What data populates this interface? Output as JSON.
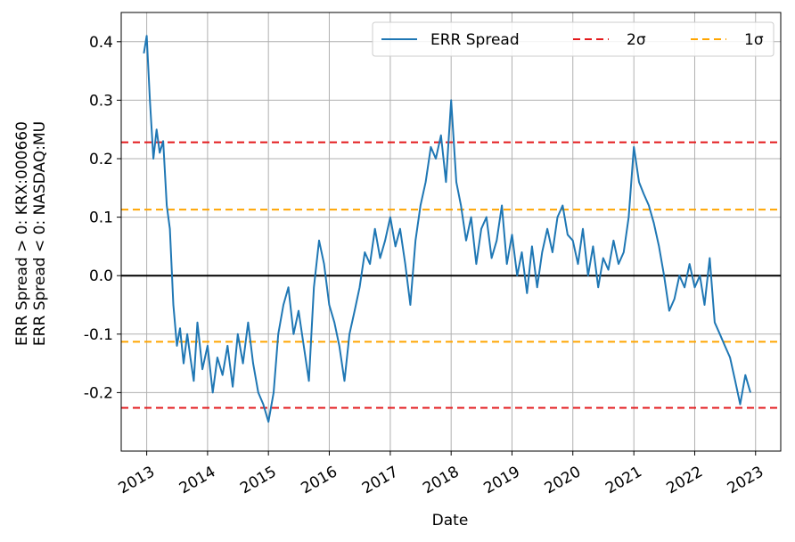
{
  "chart_data": {
    "type": "line",
    "title": "",
    "xlabel": "Date",
    "ylabel": [
      "ERR Spread > 0: KRX:000660",
      "ERR Spread < 0: NASDAQ:MU"
    ],
    "xlim": [
      "2012-08-01",
      "2023-06-01"
    ],
    "ylim": [
      -0.3,
      0.45
    ],
    "grid": true,
    "legend_position": "top-right",
    "x_ticks": [
      "2013",
      "2014",
      "2015",
      "2016",
      "2017",
      "2018",
      "2019",
      "2020",
      "2021",
      "2022",
      "2023"
    ],
    "y_ticks": [
      "0.4",
      "0.3",
      "0.2",
      "0.1",
      "0.0",
      "-0.1",
      "-0.2"
    ],
    "y_tick_values": [
      0.4,
      0.3,
      0.2,
      0.1,
      0.0,
      -0.1,
      -0.2
    ],
    "series": [
      {
        "name": "ERR Spread",
        "color": "#1f77b4",
        "style": "solid",
        "x": [
          "2012-12-15",
          "2013-01-01",
          "2013-01-20",
          "2013-02-10",
          "2013-03-01",
          "2013-03-20",
          "2013-04-10",
          "2013-05-01",
          "2013-05-20",
          "2013-06-10",
          "2013-07-01",
          "2013-07-20",
          "2013-08-10",
          "2013-09-01",
          "2013-09-20",
          "2013-10-10",
          "2013-11-01",
          "2013-12-01",
          "2014-01-01",
          "2014-02-01",
          "2014-03-01",
          "2014-04-01",
          "2014-05-01",
          "2014-06-01",
          "2014-07-01",
          "2014-08-01",
          "2014-09-01",
          "2014-10-01",
          "2014-11-01",
          "2014-12-01",
          "2015-01-01",
          "2015-02-01",
          "2015-03-01",
          "2015-04-01",
          "2015-05-01",
          "2015-06-01",
          "2015-07-01",
          "2015-08-01",
          "2015-09-01",
          "2015-10-01",
          "2015-11-01",
          "2015-12-01",
          "2016-01-01",
          "2016-02-01",
          "2016-03-01",
          "2016-04-01",
          "2016-05-01",
          "2016-06-01",
          "2016-07-01",
          "2016-08-01",
          "2016-09-01",
          "2016-10-01",
          "2016-11-01",
          "2016-12-01",
          "2017-01-01",
          "2017-02-01",
          "2017-03-01",
          "2017-04-01",
          "2017-05-01",
          "2017-06-01",
          "2017-07-01",
          "2017-08-01",
          "2017-09-01",
          "2017-10-01",
          "2017-11-01",
          "2017-12-01",
          "2018-01-01",
          "2018-02-01",
          "2018-03-01",
          "2018-04-01",
          "2018-05-01",
          "2018-06-01",
          "2018-07-01",
          "2018-08-01",
          "2018-09-01",
          "2018-10-01",
          "2018-11-01",
          "2018-12-01",
          "2019-01-01",
          "2019-02-01",
          "2019-03-01",
          "2019-04-01",
          "2019-05-01",
          "2019-06-01",
          "2019-07-01",
          "2019-08-01",
          "2019-09-01",
          "2019-10-01",
          "2019-11-01",
          "2019-12-01",
          "2020-01-01",
          "2020-02-01",
          "2020-03-01",
          "2020-04-01",
          "2020-05-01",
          "2020-06-01",
          "2020-07-01",
          "2020-08-01",
          "2020-09-01",
          "2020-10-01",
          "2020-11-01",
          "2020-12-01",
          "2021-01-01",
          "2021-02-01",
          "2021-03-01",
          "2021-04-01",
          "2021-05-01",
          "2021-06-01",
          "2021-07-01",
          "2021-08-01",
          "2021-09-01",
          "2021-10-01",
          "2021-11-01",
          "2021-12-01",
          "2022-01-01",
          "2022-02-01",
          "2022-03-01",
          "2022-04-01",
          "2022-05-01",
          "2022-06-01",
          "2022-07-01",
          "2022-08-01",
          "2022-09-01",
          "2022-10-01",
          "2022-11-01",
          "2022-12-01"
        ],
        "values": [
          0.38,
          0.41,
          0.3,
          0.2,
          0.25,
          0.21,
          0.23,
          0.12,
          0.08,
          -0.05,
          -0.12,
          -0.09,
          -0.15,
          -0.1,
          -0.14,
          -0.18,
          -0.08,
          -0.16,
          -0.12,
          -0.2,
          -0.14,
          -0.17,
          -0.12,
          -0.19,
          -0.1,
          -0.15,
          -0.08,
          -0.15,
          -0.2,
          -0.22,
          -0.25,
          -0.2,
          -0.1,
          -0.05,
          -0.02,
          -0.1,
          -0.06,
          -0.12,
          -0.18,
          -0.02,
          0.06,
          0.02,
          -0.05,
          -0.08,
          -0.12,
          -0.18,
          -0.1,
          -0.06,
          -0.02,
          0.04,
          0.02,
          0.08,
          0.03,
          0.06,
          0.1,
          0.05,
          0.08,
          0.02,
          -0.05,
          0.06,
          0.12,
          0.16,
          0.22,
          0.2,
          0.24,
          0.16,
          0.3,
          0.16,
          0.12,
          0.06,
          0.1,
          0.02,
          0.08,
          0.1,
          0.03,
          0.06,
          0.12,
          0.02,
          0.07,
          0.0,
          0.04,
          -0.03,
          0.05,
          -0.02,
          0.04,
          0.08,
          0.04,
          0.1,
          0.12,
          0.07,
          0.06,
          0.02,
          0.08,
          0.0,
          0.05,
          -0.02,
          0.03,
          0.01,
          0.06,
          0.02,
          0.04,
          0.1,
          0.22,
          0.16,
          0.14,
          0.12,
          0.09,
          0.05,
          0.0,
          -0.06,
          -0.04,
          0.0,
          -0.02,
          0.02,
          -0.02,
          0.0,
          -0.05,
          0.03,
          -0.08,
          -0.1,
          -0.12,
          -0.14,
          -0.18,
          -0.22,
          -0.17,
          -0.2
        ]
      },
      {
        "name": "2σ",
        "color": "#e31a1c",
        "style": "dashed",
        "values": [
          0.228,
          -0.226
        ]
      },
      {
        "name": "1σ",
        "color": "#ffa500",
        "style": "dashed",
        "values": [
          0.113,
          -0.113
        ]
      }
    ],
    "zero_line": {
      "value": 0.0,
      "color": "#000000"
    }
  }
}
